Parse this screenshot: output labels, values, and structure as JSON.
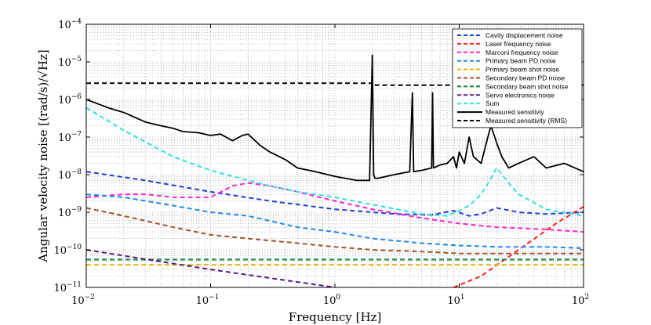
{
  "chart_data": {
    "type": "line",
    "xlabel": "Frequency [Hz]",
    "ylabel": "Angular velocity noise [(rad/s)/√Hz]",
    "xscale": "log",
    "yscale": "log",
    "xlim": [
      0.01,
      100
    ],
    "ylim": [
      1e-11,
      0.0001
    ],
    "grid": true,
    "legend_position": "top-right",
    "x_ticks": [
      {
        "value": 0.01,
        "base": "10",
        "exp": "−2"
      },
      {
        "value": 0.1,
        "base": "10",
        "exp": "−1"
      },
      {
        "value": 1,
        "base": "10",
        "exp": "0"
      },
      {
        "value": 10,
        "base": "10",
        "exp": "1"
      },
      {
        "value": 100,
        "base": "10",
        "exp": "2"
      }
    ],
    "y_ticks": [
      {
        "value": 1e-11,
        "base": "10",
        "exp": "−11"
      },
      {
        "value": 1e-10,
        "base": "10",
        "exp": "−10"
      },
      {
        "value": 1e-09,
        "base": "10",
        "exp": "−9"
      },
      {
        "value": 1e-08,
        "base": "10",
        "exp": "−8"
      },
      {
        "value": 1e-07,
        "base": "10",
        "exp": "−7"
      },
      {
        "value": 1e-06,
        "base": "10",
        "exp": "−6"
      },
      {
        "value": 1e-05,
        "base": "10",
        "exp": "−5"
      },
      {
        "value": 0.0001,
        "base": "10",
        "exp": "−4"
      }
    ],
    "series": [
      {
        "name": "Cavity displacement noise",
        "color": "#1f3fd6",
        "dash": "dashed",
        "x": [
          0.01,
          0.03,
          0.1,
          0.3,
          1,
          3,
          6,
          9,
          12,
          15,
          20,
          30,
          50,
          100
        ],
        "y": [
          1.2e-08,
          7e-09,
          3.5e-09,
          2e-09,
          1.2e-09,
          9e-10,
          8.5e-10,
          1.1e-09,
          8e-10,
          9e-10,
          1.3e-09,
          1e-09,
          9e-10,
          1e-09
        ]
      },
      {
        "name": "Laser frequency noise",
        "color": "#ff2020",
        "dash": "dashed",
        "x": [
          9,
          15,
          30,
          60,
          100
        ],
        "y": [
          1e-11,
          2e-11,
          1e-10,
          5e-10,
          1.4e-09
        ]
      },
      {
        "name": "Marconi frequency noise",
        "color": "#ff22cc",
        "dash": "dashed",
        "x": [
          0.01,
          0.02,
          0.03,
          0.05,
          0.1,
          0.15,
          0.2,
          0.3,
          0.5,
          1,
          2,
          5,
          10,
          20,
          50,
          100
        ],
        "y": [
          2.5e-09,
          3e-09,
          3e-09,
          2.5e-09,
          2.5e-09,
          5e-09,
          6e-09,
          5e-09,
          3.5e-09,
          2e-09,
          1.2e-09,
          7e-10,
          5e-10,
          4e-10,
          3.5e-10,
          3e-10
        ]
      },
      {
        "name": "Primary beam PD noise",
        "color": "#2288ee",
        "dash": "dashed",
        "x": [
          0.01,
          0.02,
          0.05,
          0.1,
          0.2,
          0.5,
          1,
          2,
          5,
          10,
          20,
          50,
          100
        ],
        "y": [
          3e-09,
          2.5e-09,
          1.5e-09,
          1e-09,
          8e-10,
          4e-10,
          3e-10,
          2e-10,
          1.5e-10,
          1.3e-10,
          1.2e-10,
          1.2e-10,
          1.1e-10
        ]
      },
      {
        "name": "Primary beam shot noise",
        "color": "#e8b800",
        "dash": "dashed",
        "x": [
          0.01,
          100
        ],
        "y": [
          4e-11,
          4e-11
        ]
      },
      {
        "name": "Secondary beam PD noise",
        "color": "#a0522d",
        "dash": "dashed",
        "x": [
          0.01,
          0.02,
          0.05,
          0.1,
          0.2,
          0.5,
          1,
          2,
          5,
          10,
          20,
          50,
          100
        ],
        "y": [
          1.3e-09,
          8e-10,
          4e-10,
          2.5e-10,
          2e-10,
          1.5e-10,
          1.2e-10,
          1e-10,
          9e-11,
          8e-11,
          8e-11,
          8e-11,
          8e-11
        ]
      },
      {
        "name": "Secondary beam shot noise",
        "color": "#118844",
        "dash": "dashed",
        "x": [
          0.01,
          100
        ],
        "y": [
          5.5e-11,
          5.5e-11
        ]
      },
      {
        "name": "Servo electronics noise",
        "color": "#5a1a8a",
        "dash": "dashed",
        "x": [
          0.01,
          0.1,
          1
        ],
        "y": [
          1e-10,
          3e-11,
          1e-11
        ]
      },
      {
        "name": "Sum",
        "color": "#33e0e0",
        "dash": "dashed",
        "x": [
          0.01,
          0.02,
          0.05,
          0.1,
          0.2,
          0.3,
          0.5,
          1,
          2,
          5,
          8,
          10,
          12,
          15,
          18,
          20,
          25,
          30,
          50,
          100
        ],
        "y": [
          6e-07,
          1.5e-07,
          3e-08,
          1.3e-08,
          7e-09,
          5e-09,
          3.5e-09,
          2.5e-09,
          1.6e-09,
          9e-10,
          8e-10,
          1.1e-09,
          1.5e-09,
          3e-09,
          8e-09,
          1.5e-08,
          6e-09,
          3e-09,
          1.2e-09,
          8e-10
        ]
      },
      {
        "name": "Measured sensitiviy",
        "color": "#000000",
        "dash": "solid",
        "x": [
          0.01,
          0.015,
          0.02,
          0.03,
          0.04,
          0.05,
          0.06,
          0.08,
          0.1,
          0.12,
          0.15,
          0.18,
          0.2,
          0.25,
          0.3,
          0.4,
          0.5,
          0.7,
          1,
          1.5,
          1.9,
          2.0,
          2.05,
          2.1,
          2.2,
          3,
          4,
          4.2,
          4.3,
          5,
          6,
          6.1,
          6.2,
          7,
          8,
          9,
          9.5,
          10,
          11,
          12,
          13,
          15,
          17,
          18,
          20,
          22,
          25,
          30,
          40,
          50,
          70,
          100
        ],
        "y": [
          1e-06,
          6e-07,
          4.5e-07,
          2.5e-07,
          2e-07,
          1.7e-07,
          1.4e-07,
          1.3e-07,
          1.1e-07,
          1.2e-07,
          8e-08,
          1.1e-07,
          1.2e-07,
          6e-08,
          4e-08,
          2.5e-08,
          1.5e-08,
          1.2e-08,
          9e-09,
          7e-09,
          7e-09,
          1.5e-05,
          1e-08,
          8e-09,
          8e-09,
          1e-08,
          1.2e-08,
          1.5e-06,
          1.2e-08,
          1.3e-08,
          1.5e-08,
          1.5e-06,
          1.5e-08,
          1.8e-08,
          2e-08,
          3e-08,
          1.5e-08,
          4e-08,
          2e-08,
          1e-07,
          3e-08,
          2e-08,
          1e-07,
          2e-07,
          7e-08,
          3e-08,
          1.5e-08,
          2e-08,
          3e-08,
          1.5e-08,
          2e-08,
          1.2e-08
        ]
      },
      {
        "name": "Measured sensitivity (RMS)",
        "color": "#000000",
        "dash": "dashed",
        "x": [
          0.01,
          2,
          2,
          100
        ],
        "y": [
          2.7e-06,
          2.7e-06,
          2.4e-06,
          2.4e-06
        ]
      }
    ]
  }
}
